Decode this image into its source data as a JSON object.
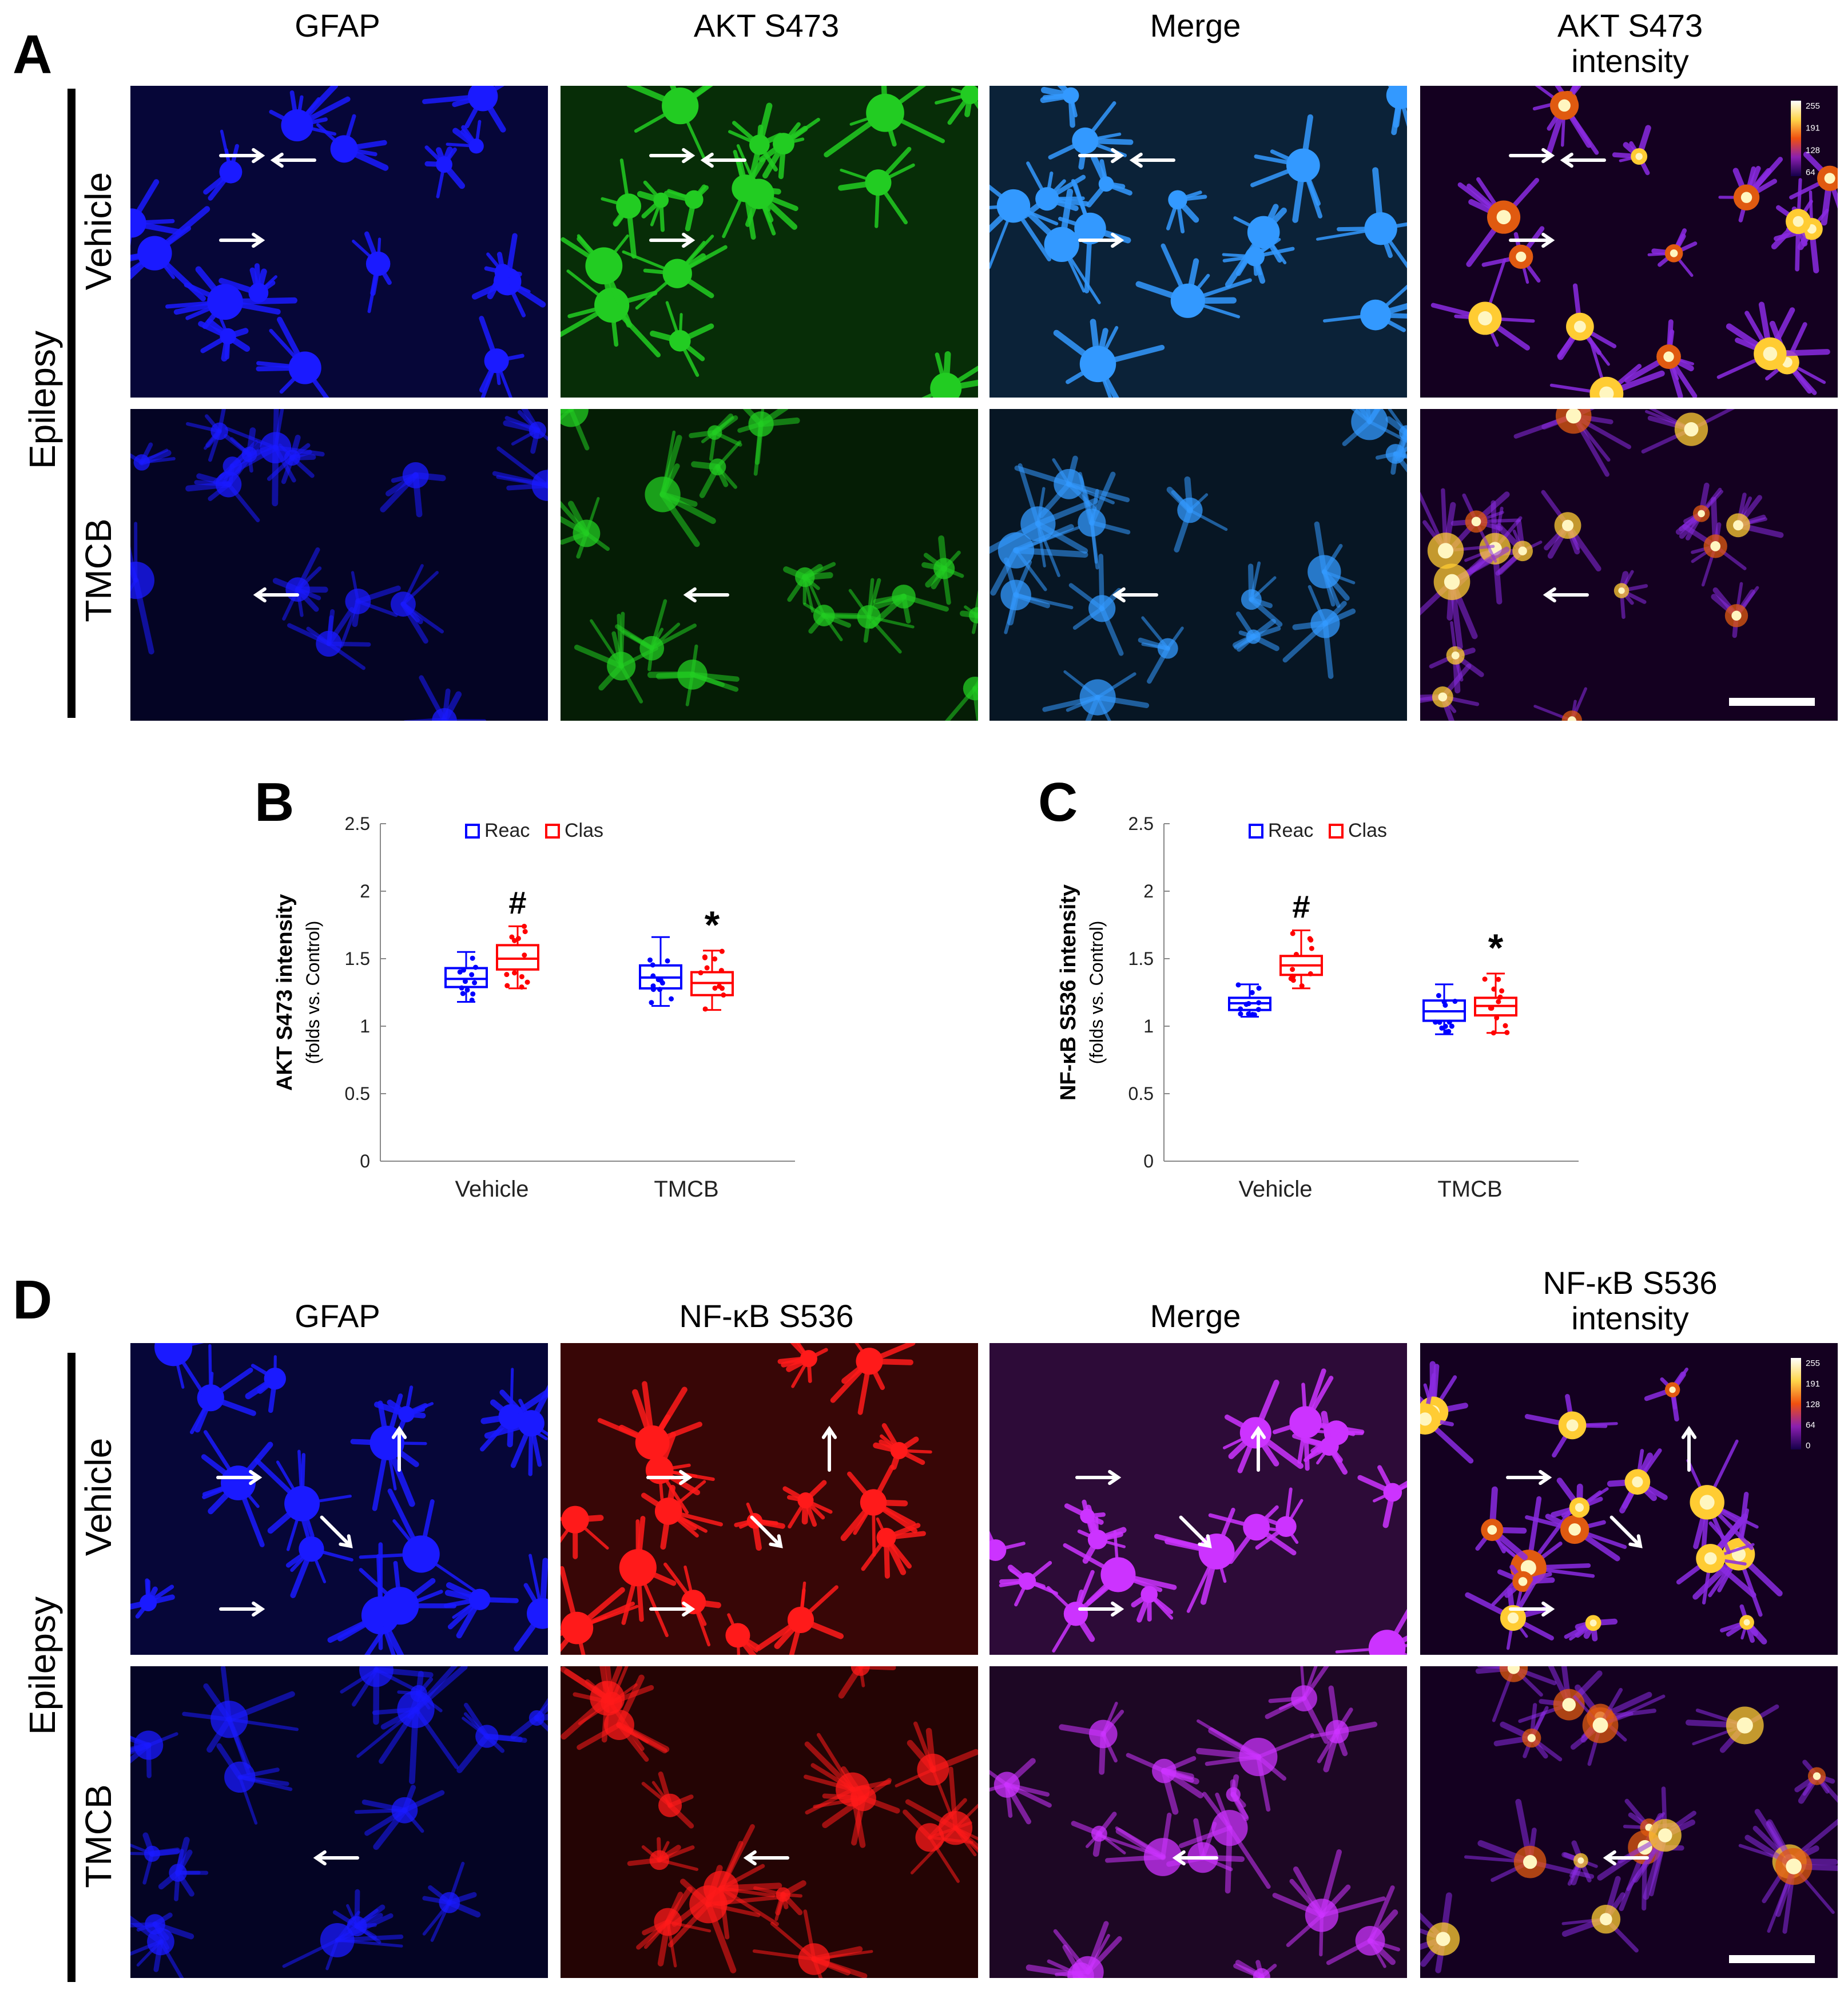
{
  "panelA": {
    "letter": "A",
    "columns": [
      "GFAP",
      "AKT S473",
      "Merge",
      "AKT S473\nintensity"
    ],
    "group_label": "Epilepsy",
    "rows": [
      "Vehicle",
      "TMCB"
    ],
    "colorbar_ticks": [
      "255",
      "191",
      "128",
      "64"
    ]
  },
  "panelD": {
    "letter": "D",
    "columns": [
      "GFAP",
      "NF-κB S536",
      "Merge",
      "NF-κB S536\nintensity"
    ],
    "group_label": "Epilepsy",
    "rows": [
      "Vehicle",
      "TMCB"
    ],
    "colorbar_ticks": [
      "255",
      "191",
      "128",
      "64",
      "0"
    ]
  },
  "colors": {
    "gfap": "#1a1aff",
    "akt": "#22cc22",
    "nfkb": "#ff1a1a",
    "merge_a": "#3399ff",
    "merge_d": "#cc33ff",
    "reac": "#0000ff",
    "clas": "#ff0000"
  },
  "chart_data": [
    {
      "panel": "B",
      "type": "box",
      "ylabel": "AKT S473 intensity",
      "ylabel_sub": "(folds vs. Control)",
      "ylim": [
        0,
        2.5
      ],
      "yticks": [
        "0",
        "0.5",
        "1",
        "1.5",
        "2",
        "2.5"
      ],
      "ytick_values": [
        0,
        0.5,
        1,
        1.5,
        2,
        2.5
      ],
      "categories": [
        "Vehicle",
        "TMCB"
      ],
      "legend": [
        "Reac",
        "Clas"
      ],
      "series": [
        {
          "name": "Reac",
          "boxes": [
            {
              "min": 1.18,
              "q1": 1.29,
              "median": 1.35,
              "q3": 1.43,
              "max": 1.55
            },
            {
              "min": 1.15,
              "q1": 1.28,
              "median": 1.36,
              "q3": 1.45,
              "max": 1.66
            }
          ]
        },
        {
          "name": "Clas",
          "boxes": [
            {
              "min": 1.28,
              "q1": 1.42,
              "median": 1.5,
              "q3": 1.6,
              "max": 1.74
            },
            {
              "min": 1.12,
              "q1": 1.23,
              "median": 1.32,
              "q3": 1.4,
              "max": 1.56
            }
          ]
        }
      ],
      "annotations": [
        {
          "symbol": "#",
          "category": "Vehicle",
          "series": "Clas"
        },
        {
          "symbol": "*",
          "category": "TMCB",
          "series": "Clas"
        }
      ]
    },
    {
      "panel": "C",
      "type": "box",
      "ylabel": "NF-κB S536 intensity",
      "ylabel_sub": "(folds vs. Control)",
      "ylim": [
        0,
        2.5
      ],
      "yticks": [
        "0",
        "0.5",
        "1",
        "1.5",
        "2",
        "2.5"
      ],
      "ytick_values": [
        0,
        0.5,
        1,
        1.5,
        2,
        2.5
      ],
      "categories": [
        "Vehicle",
        "TMCB"
      ],
      "legend": [
        "Reac",
        "Clas"
      ],
      "series": [
        {
          "name": "Reac",
          "boxes": [
            {
              "min": 1.07,
              "q1": 1.12,
              "median": 1.17,
              "q3": 1.21,
              "max": 1.31
            },
            {
              "min": 0.94,
              "q1": 1.04,
              "median": 1.11,
              "q3": 1.19,
              "max": 1.31
            }
          ]
        },
        {
          "name": "Clas",
          "boxes": [
            {
              "min": 1.28,
              "q1": 1.38,
              "median": 1.45,
              "q3": 1.52,
              "max": 1.71
            },
            {
              "min": 0.95,
              "q1": 1.08,
              "median": 1.15,
              "q3": 1.21,
              "max": 1.39
            }
          ]
        }
      ],
      "annotations": [
        {
          "symbol": "#",
          "category": "Vehicle",
          "series": "Clas"
        },
        {
          "symbol": "*",
          "category": "TMCB",
          "series": "Clas"
        }
      ]
    }
  ]
}
